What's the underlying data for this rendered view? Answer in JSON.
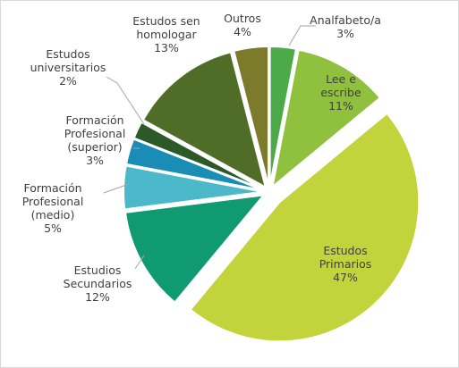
{
  "chart_data": {
    "type": "pie",
    "categories": [
      "Analfabeto/a",
      "Lee e escribe",
      "Estudos Primarios",
      "Estudios Secundarios",
      "Formación Profesional (medio)",
      "Formación Profesional (superior)",
      "Estudos universitarios",
      "Estudos sen homologar",
      "Outros"
    ],
    "values": [
      3,
      11,
      47,
      12,
      5,
      3,
      2,
      13,
      4
    ],
    "value_labels": [
      "3%",
      "11%",
      "47%",
      "12%",
      "5%",
      "3%",
      "2%",
      "13%",
      "4%"
    ],
    "colors": [
      "#4caa48",
      "#8fc03e",
      "#c3d33c",
      "#0f9a72",
      "#4bb9c9",
      "#1a8db6",
      "#2b5a28",
      "#4f6d27",
      "#7c7a2b"
    ]
  }
}
